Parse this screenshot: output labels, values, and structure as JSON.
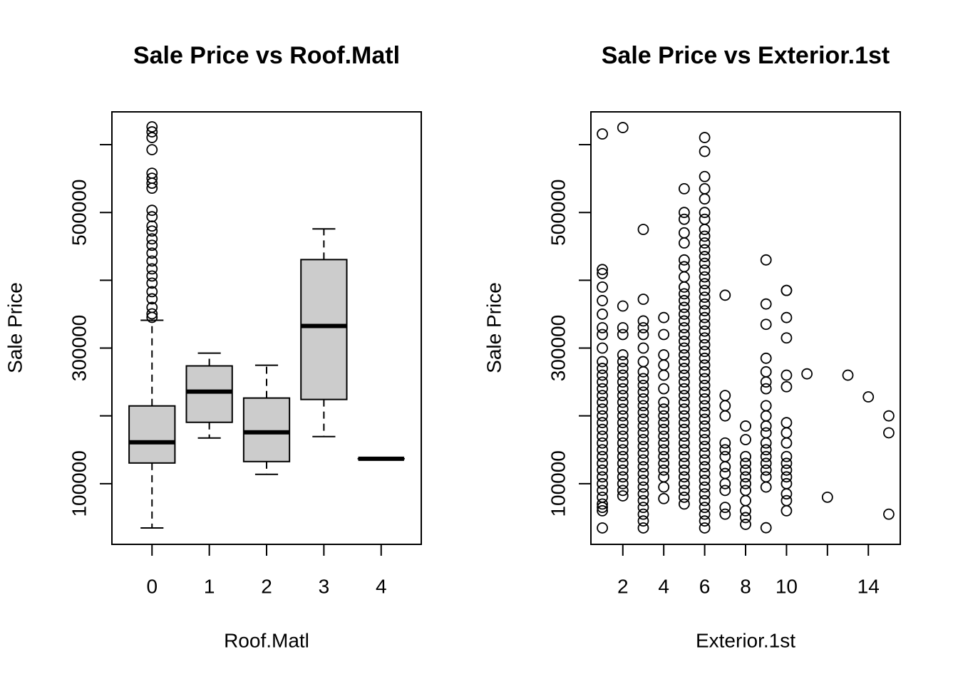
{
  "chart_data": [
    {
      "type": "box",
      "title": "Sale Price vs Roof.Matl",
      "x_label": "Roof.Matl",
      "y_label": "Sale Price",
      "categories": [
        "0",
        "1",
        "2",
        "3",
        "4"
      ],
      "boxes": [
        {
          "low": 34700,
          "q1": 130500,
          "median": 161000,
          "q3": 214700,
          "high": 341000,
          "outliers": [
            626300,
            618900,
            610500,
            592600,
            557900,
            550500,
            543200,
            535800,
            503200,
            493700,
            480000,
            472600,
            461000,
            451600,
            440000,
            428400,
            416800,
            406300,
            395800,
            383200,
            372600,
            360000,
            350500,
            345300
          ]
        },
        {
          "low": 167400,
          "q1": 190500,
          "median": 235800,
          "q3": 273700,
          "high": 292600,
          "outliers": []
        },
        {
          "low": 113700,
          "q1": 132600,
          "median": 175800,
          "q3": 226300,
          "high": 274700,
          "outliers": []
        },
        {
          "low": 169500,
          "q1": 224200,
          "median": 332600,
          "q3": 430500,
          "high": 475800,
          "outliers": []
        },
        {
          "low": 136800,
          "q1": 136800,
          "median": 136800,
          "q3": 136800,
          "high": 136800,
          "outliers": []
        }
      ],
      "color": "#cccccc",
      "ylim": [
        10500,
        648400
      ],
      "yticks": [
        100000,
        {
          "value": 200000,
          "label": null
        },
        300000,
        {
          "value": 400000,
          "label": null
        },
        500000,
        {
          "value": 600000,
          "label": null
        }
      ]
    },
    {
      "type": "scatter",
      "title": "Sale Price vs Exterior.1st",
      "x_label": "Exterior.1st",
      "y_label": "Sale Price",
      "x": [
        1,
        1,
        1,
        1,
        1,
        1,
        1,
        1,
        1,
        1,
        1,
        1,
        1,
        1,
        1,
        1,
        1,
        1,
        1,
        1,
        1,
        1,
        1,
        1,
        1,
        1,
        1,
        1,
        1,
        1,
        1,
        1,
        1,
        1,
        2,
        2,
        2,
        2,
        2,
        2,
        2,
        2,
        2,
        2,
        2,
        2,
        2,
        2,
        2,
        2,
        2,
        2,
        2,
        2,
        2,
        2,
        2,
        2,
        2,
        2,
        3,
        3,
        3,
        3,
        3,
        3,
        3,
        3,
        3,
        3,
        3,
        3,
        3,
        3,
        3,
        3,
        3,
        3,
        3,
        3,
        3,
        3,
        3,
        3,
        3,
        3,
        3,
        3,
        3,
        3,
        3,
        4,
        4,
        4,
        4,
        4,
        4,
        4,
        4,
        4,
        4,
        4,
        4,
        4,
        4,
        4,
        4,
        4,
        4,
        4,
        4,
        5,
        5,
        5,
        5,
        5,
        5,
        5,
        5,
        5,
        5,
        5,
        5,
        5,
        5,
        5,
        5,
        5,
        5,
        5,
        5,
        5,
        5,
        5,
        5,
        5,
        5,
        5,
        5,
        5,
        5,
        5,
        5,
        5,
        5,
        5,
        5,
        5,
        5,
        5,
        5,
        5,
        6,
        6,
        6,
        6,
        6,
        6,
        6,
        6,
        6,
        6,
        6,
        6,
        6,
        6,
        6,
        6,
        6,
        6,
        6,
        6,
        6,
        6,
        6,
        6,
        6,
        6,
        6,
        6,
        6,
        6,
        6,
        6,
        6,
        6,
        6,
        6,
        6,
        6,
        6,
        6,
        6,
        6,
        6,
        6,
        6,
        6,
        6,
        6,
        6,
        6,
        6,
        6,
        7,
        7,
        7,
        7,
        7,
        7,
        7,
        7,
        7,
        7,
        7,
        7,
        7,
        8,
        8,
        8,
        8,
        8,
        8,
        8,
        8,
        8,
        8,
        8,
        8,
        9,
        9,
        9,
        9,
        9,
        9,
        9,
        9,
        9,
        9,
        9,
        9,
        9,
        9,
        9,
        9,
        9,
        9,
        9,
        10,
        10,
        10,
        10,
        10,
        10,
        10,
        10,
        10,
        10,
        10,
        10,
        10,
        10,
        10,
        10,
        10,
        11,
        12,
        13,
        14,
        15,
        15,
        15
      ],
      "values": [
        34700,
        60000,
        65000,
        70000,
        80000,
        90000,
        100000,
        110000,
        120000,
        130000,
        140000,
        150000,
        160000,
        170000,
        180000,
        190000,
        200000,
        210000,
        220000,
        230000,
        240000,
        250000,
        260000,
        270000,
        280000,
        300000,
        320000,
        330000,
        350000,
        370000,
        390000,
        410000,
        415800,
        615800,
        82000,
        90000,
        100000,
        110000,
        120000,
        130000,
        140000,
        150000,
        160000,
        170000,
        180000,
        190000,
        200000,
        210000,
        220000,
        230000,
        240000,
        250000,
        260000,
        270000,
        280000,
        290000,
        320000,
        330000,
        362000,
        625200,
        34700,
        45000,
        55000,
        65000,
        75000,
        85000,
        95000,
        105000,
        115000,
        125000,
        135000,
        145000,
        155000,
        165000,
        175000,
        185000,
        195000,
        205000,
        215000,
        225000,
        235000,
        245000,
        255000,
        265000,
        280000,
        300000,
        320000,
        330000,
        340000,
        372000,
        475000,
        78000,
        95000,
        110000,
        120000,
        130000,
        140000,
        150000,
        160000,
        170000,
        180000,
        190000,
        200000,
        210000,
        220000,
        240000,
        260000,
        275000,
        290000,
        320000,
        345000,
        70000,
        80000,
        90000,
        100000,
        110000,
        120000,
        130000,
        140000,
        150000,
        160000,
        170000,
        180000,
        190000,
        200000,
        210000,
        220000,
        230000,
        240000,
        250000,
        260000,
        270000,
        280000,
        290000,
        300000,
        310000,
        320000,
        330000,
        340000,
        350000,
        360000,
        370000,
        380000,
        390000,
        405000,
        420000,
        430000,
        455000,
        470000,
        490000,
        500000,
        535000,
        34700,
        45000,
        55000,
        65000,
        75000,
        85000,
        95000,
        105000,
        115000,
        125000,
        135000,
        145000,
        155000,
        165000,
        175000,
        185000,
        195000,
        205000,
        215000,
        225000,
        235000,
        245000,
        255000,
        265000,
        275000,
        285000,
        295000,
        305000,
        315000,
        325000,
        335000,
        345000,
        355000,
        365000,
        375000,
        385000,
        395000,
        405000,
        415000,
        425000,
        435000,
        445000,
        455000,
        465000,
        475000,
        490000,
        500000,
        520000,
        535000,
        553000,
        590000,
        610500,
        55000,
        65000,
        90000,
        100000,
        115000,
        125000,
        140000,
        150000,
        160000,
        200000,
        215000,
        230000,
        378000,
        40000,
        50000,
        60000,
        75000,
        90000,
        100000,
        110000,
        120000,
        130000,
        140000,
        165000,
        185000,
        35000,
        95000,
        110000,
        120000,
        130000,
        140000,
        150000,
        160000,
        175000,
        185000,
        200000,
        215000,
        240000,
        250000,
        265000,
        285000,
        335000,
        365000,
        430000,
        60000,
        75000,
        85000,
        100000,
        110000,
        120000,
        130000,
        140000,
        160000,
        175000,
        190000,
        243000,
        260000,
        315000,
        345000,
        385000,
        385000,
        262000,
        80000,
        260000,
        228000,
        55000,
        175000,
        200000
      ],
      "ylim": [
        10500,
        648400
      ],
      "yticks": [
        100000,
        {
          "value": 200000,
          "label": null
        },
        300000,
        {
          "value": 400000,
          "label": null
        },
        500000,
        {
          "value": 600000,
          "label": null
        }
      ],
      "xlim": [
        0.44,
        15.56
      ],
      "xticks": [
        2,
        4,
        6,
        8,
        10,
        {
          "value": 12,
          "label": null
        },
        14
      ]
    }
  ]
}
